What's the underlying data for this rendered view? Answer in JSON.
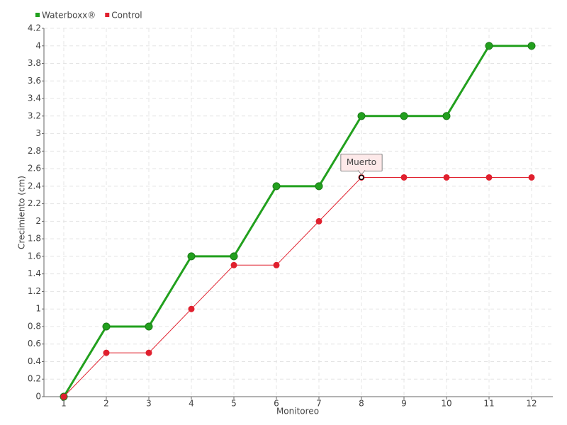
{
  "chart_data": {
    "type": "line",
    "xlabel": "Monitoreo",
    "ylabel": "Crecimiento (cm)",
    "categories": [
      "1",
      "2",
      "3",
      "4",
      "5",
      "6",
      "7",
      "8",
      "9",
      "10",
      "11",
      "12"
    ],
    "series": [
      {
        "name": "Waterboxx®",
        "color": "#22a01e",
        "values": [
          0,
          0.8,
          0.8,
          1.6,
          1.6,
          2.4,
          2.4,
          3.2,
          3.2,
          3.2,
          4,
          4
        ]
      },
      {
        "name": "Control",
        "color": "#e0202e",
        "values": [
          0,
          0.5,
          0.5,
          1,
          1.5,
          1.5,
          2,
          2.5,
          2.5,
          2.5,
          2.5,
          2.5
        ]
      }
    ],
    "ylim": [
      0,
      4.2
    ],
    "yticks": [
      0,
      0.2,
      0.4,
      0.6,
      0.8,
      1,
      1.2,
      1.4,
      1.6,
      1.8,
      2,
      2.2,
      2.4,
      2.6,
      2.8,
      3,
      3.2,
      3.4,
      3.6,
      3.8,
      4,
      4.2
    ],
    "grid": true,
    "legend": "top-left",
    "annotations": [
      {
        "text": "Muerto",
        "series": 1,
        "index": 7
      }
    ]
  }
}
